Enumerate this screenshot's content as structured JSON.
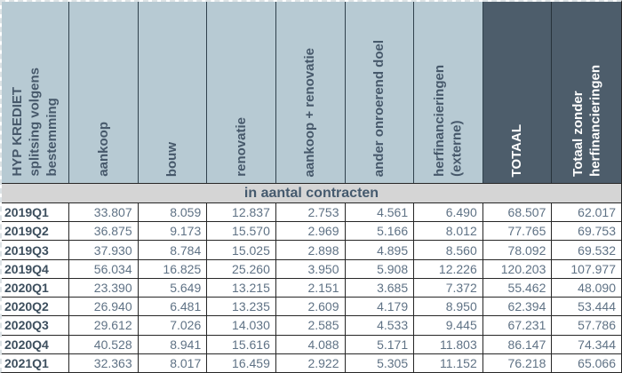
{
  "header": {
    "corner": "HYP KREDIET\nsplitsing volgens\nbestemming",
    "columns": [
      {
        "label": "aankoop"
      },
      {
        "label": "bouw"
      },
      {
        "label": "renovatie"
      },
      {
        "label": "aankoop + renovatie"
      },
      {
        "label": "ander onroerend doel"
      },
      {
        "label": "herfinancieringen\n(externe)"
      },
      {
        "label": "TOTAAL"
      },
      {
        "label": "Totaal zonder\nherfinancieringen"
      }
    ]
  },
  "band": {
    "label": "in aantal contracten"
  },
  "colors": {
    "header_light_bg": "#b7cad3",
    "header_dark_bg": "#4d5d6b",
    "band_bg": "#d5d5d5",
    "header_text": "#47596b",
    "value_text": "#5f7285",
    "label_text": "#3d4f5e",
    "border": "#262626"
  },
  "chart_data": {
    "type": "table",
    "title": "HYP KREDIET splitsing volgens bestemming - in aantal contracten",
    "columns": [
      "aankoop",
      "bouw",
      "renovatie",
      "aankoop + renovatie",
      "ander onroerend doel",
      "herfinancieringen (externe)",
      "TOTAAL",
      "Totaal zonder herfinancieringen"
    ],
    "row_labels": [
      "2019Q1",
      "2019Q2",
      "2019Q3",
      "2019Q4",
      "2020Q1",
      "2020Q2",
      "2020Q3",
      "2020Q4",
      "2021Q1"
    ]
  },
  "rows": [
    {
      "label": "2019Q1",
      "values": [
        "33.807",
        "8.059",
        "12.837",
        "2.753",
        "4.561",
        "6.490",
        "68.507",
        "62.017"
      ]
    },
    {
      "label": "2019Q2",
      "values": [
        "36.875",
        "9.173",
        "15.570",
        "2.969",
        "5.166",
        "8.012",
        "77.765",
        "69.753"
      ]
    },
    {
      "label": "2019Q3",
      "values": [
        "37.930",
        "8.784",
        "15.025",
        "2.898",
        "4.895",
        "8.560",
        "78.092",
        "69.532"
      ]
    },
    {
      "label": "2019Q4",
      "values": [
        "56.034",
        "16.825",
        "25.260",
        "3.950",
        "5.908",
        "12.226",
        "120.203",
        "107.977"
      ]
    },
    {
      "label": "2020Q1",
      "values": [
        "23.390",
        "5.649",
        "13.215",
        "2.151",
        "3.685",
        "7.372",
        "55.462",
        "48.090"
      ]
    },
    {
      "label": "2020Q2",
      "values": [
        "26.940",
        "6.481",
        "13.235",
        "2.609",
        "4.179",
        "8.950",
        "62.394",
        "53.444"
      ]
    },
    {
      "label": "2020Q3",
      "values": [
        "29.612",
        "7.026",
        "14.030",
        "2.585",
        "4.533",
        "9.445",
        "67.231",
        "57.786"
      ]
    },
    {
      "label": "2020Q4",
      "values": [
        "40.528",
        "8.941",
        "15.616",
        "4.088",
        "5.171",
        "11.803",
        "86.147",
        "74.344"
      ]
    },
    {
      "label": "2021Q1",
      "values": [
        "32.363",
        "8.017",
        "16.459",
        "2.922",
        "5.305",
        "11.152",
        "76.218",
        "65.066"
      ]
    }
  ]
}
